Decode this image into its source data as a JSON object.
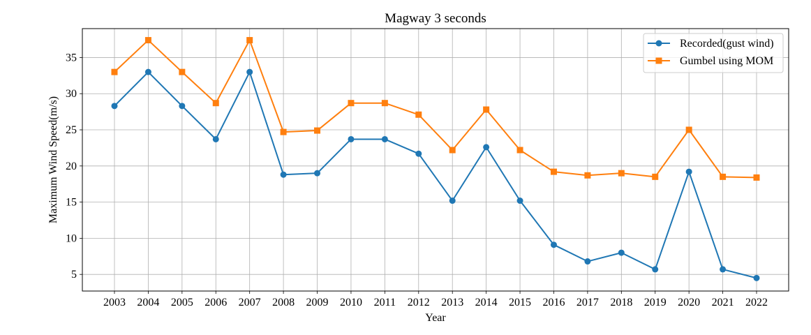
{
  "chart_data": {
    "type": "line",
    "title": "Magway 3 seconds",
    "xlabel": "Year",
    "ylabel": "Maximum Wind Speed(m/s)",
    "x": [
      "2003",
      "2004",
      "2005",
      "2006",
      "2007",
      "2008",
      "2009",
      "2010",
      "2011",
      "2012",
      "2013",
      "2014",
      "2015",
      "2016",
      "2017",
      "2018",
      "2019",
      "2020",
      "2021",
      "2022"
    ],
    "y_ticks": [
      5,
      10,
      15,
      20,
      25,
      30,
      35
    ],
    "ylim": [
      2.7,
      39
    ],
    "grid": true,
    "legend_position": "top-right",
    "series": [
      {
        "name": "Recorded(gust wind)",
        "color": "#1f77b4",
        "marker": "circle",
        "values": [
          28.3,
          33.0,
          28.3,
          23.7,
          33.0,
          18.8,
          19.0,
          23.7,
          23.7,
          21.7,
          15.2,
          22.6,
          15.2,
          9.1,
          6.8,
          8.0,
          5.7,
          19.2,
          5.7,
          4.5
        ]
      },
      {
        "name": "Gumbel using MOM",
        "color": "#ff7f0e",
        "marker": "square",
        "values": [
          33.0,
          37.4,
          33.0,
          28.7,
          37.4,
          24.7,
          24.9,
          28.7,
          28.7,
          27.1,
          22.2,
          27.8,
          22.2,
          19.2,
          18.7,
          19.0,
          18.5,
          25.0,
          18.5,
          18.4
        ]
      }
    ]
  }
}
